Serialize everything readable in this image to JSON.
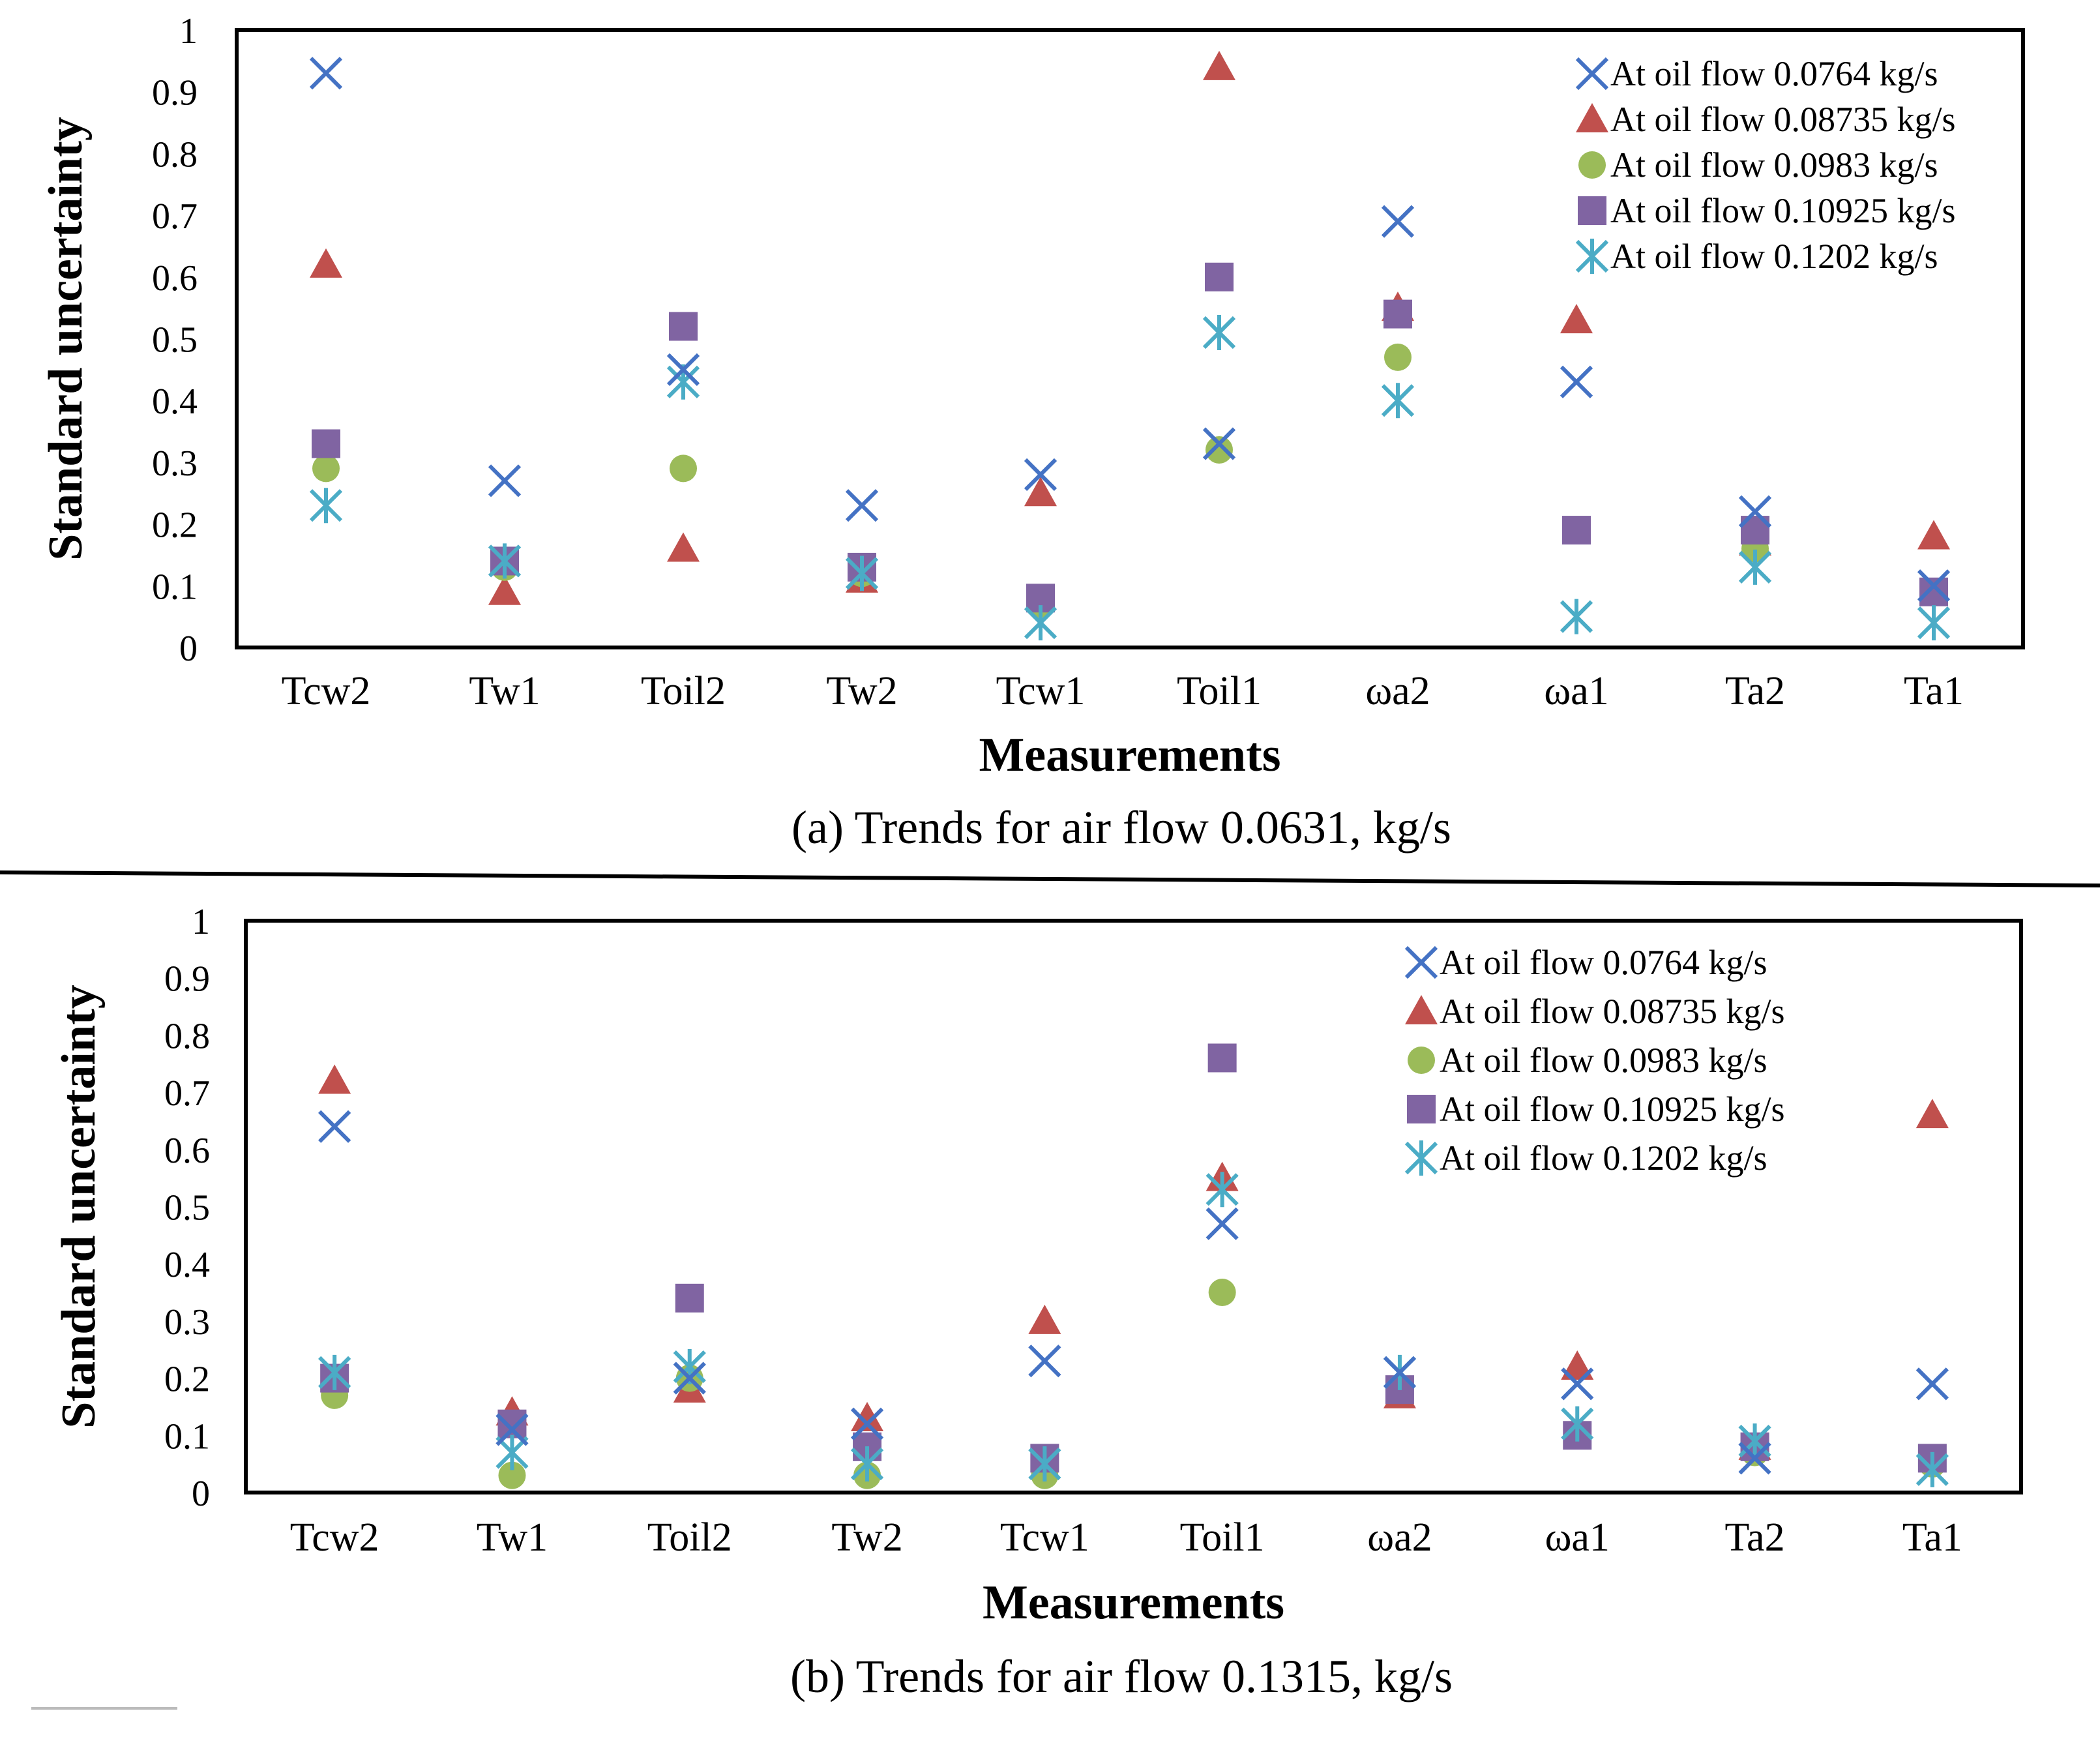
{
  "figure": {
    "divider_present": true
  },
  "legend_marker_colors": {
    "0.0764": "#4472C4",
    "0.08735": "#C0504D",
    "0.0983": "#9BBB59",
    "0.10925": "#8064A2",
    "0.1202": "#4BACC6"
  },
  "chart_data": [
    {
      "type": "scatter",
      "caption": "(a) Trends for air flow 0.0631, kg/s",
      "xlabel": "Measurements",
      "ylabel": "Standard uncertainty",
      "categories": [
        "Tcw2",
        "Tw1",
        "Toil2",
        "Tw2",
        "Tcw1",
        "Toil1",
        "ωa2",
        "ωa1",
        "Ta2",
        "Ta1"
      ],
      "ylim": [
        0,
        1
      ],
      "yticks": [
        "0",
        "0.1",
        "0.2",
        "0.3",
        "0.4",
        "0.5",
        "0.6",
        "0.7",
        "0.8",
        "0.9",
        "1"
      ],
      "grid": false,
      "legend_position": "top-right",
      "series": [
        {
          "name": "At oil flow 0.0764 kg/s",
          "marker": "x",
          "color": "#4472C4",
          "values": [
            0.93,
            0.27,
            0.45,
            0.23,
            0.28,
            0.33,
            0.69,
            0.43,
            0.22,
            0.1
          ]
        },
        {
          "name": "At oil flow 0.08735 kg/s",
          "marker": "triangle",
          "color": "#C0504D",
          "values": [
            0.62,
            0.09,
            0.16,
            0.11,
            0.25,
            0.94,
            0.55,
            0.53,
            0.17,
            0.18
          ]
        },
        {
          "name": "At oil flow 0.0983 kg/s",
          "marker": "circle",
          "color": "#9BBB59",
          "values": [
            0.29,
            0.13,
            0.29,
            0.12,
            0.07,
            0.32,
            0.47,
            0.19,
            0.16,
            0.09
          ]
        },
        {
          "name": "At oil flow 0.10925 kg/s",
          "marker": "square",
          "color": "#8064A2",
          "values": [
            0.33,
            0.14,
            0.52,
            0.13,
            0.08,
            0.6,
            0.54,
            0.19,
            0.19,
            0.09
          ]
        },
        {
          "name": "At oil flow 0.1202 kg/s",
          "marker": "asterisk",
          "color": "#4BACC6",
          "values": [
            0.23,
            0.14,
            0.43,
            0.12,
            0.04,
            0.51,
            0.4,
            0.05,
            0.13,
            0.04
          ]
        }
      ]
    },
    {
      "type": "scatter",
      "caption": "(b) Trends for air flow 0.1315, kg/s",
      "xlabel": "Measurements",
      "ylabel": "Standard uncertainty",
      "categories": [
        "Tcw2",
        "Tw1",
        "Toil2",
        "Tw2",
        "Tcw1",
        "Toil1",
        "ωa2",
        "ωa1",
        "Ta2",
        "Ta1"
      ],
      "ylim": [
        0,
        1
      ],
      "yticks": [
        "0",
        "0.1",
        "0.2",
        "0.3",
        "0.4",
        "0.5",
        "0.6",
        "0.7",
        "0.8",
        "0.9",
        "1"
      ],
      "grid": false,
      "legend_position": "top-right",
      "series": [
        {
          "name": "At oil flow 0.0764 kg/s",
          "marker": "x",
          "color": "#4472C4",
          "values": [
            0.64,
            0.11,
            0.2,
            0.12,
            0.23,
            0.47,
            0.21,
            0.19,
            0.06,
            0.19
          ]
        },
        {
          "name": "At oil flow 0.08735 kg/s",
          "marker": "triangle",
          "color": "#C0504D",
          "values": [
            0.72,
            0.14,
            0.18,
            0.13,
            0.3,
            0.55,
            0.17,
            0.22,
            0.08,
            0.66
          ]
        },
        {
          "name": "At oil flow 0.0983 kg/s",
          "marker": "circle",
          "color": "#9BBB59",
          "values": [
            0.17,
            0.03,
            0.2,
            0.03,
            0.03,
            0.35,
            0.18,
            0.1,
            0.07,
            0.05
          ]
        },
        {
          "name": "At oil flow 0.10925 kg/s",
          "marker": "square",
          "color": "#8064A2",
          "values": [
            0.2,
            0.12,
            0.34,
            0.08,
            0.06,
            0.76,
            0.18,
            0.1,
            0.08,
            0.06
          ]
        },
        {
          "name": "At oil flow 0.1202 kg/s",
          "marker": "asterisk",
          "color": "#4BACC6",
          "values": [
            0.21,
            0.07,
            0.22,
            0.05,
            0.05,
            0.53,
            0.21,
            0.12,
            0.09,
            0.04
          ]
        }
      ]
    }
  ]
}
